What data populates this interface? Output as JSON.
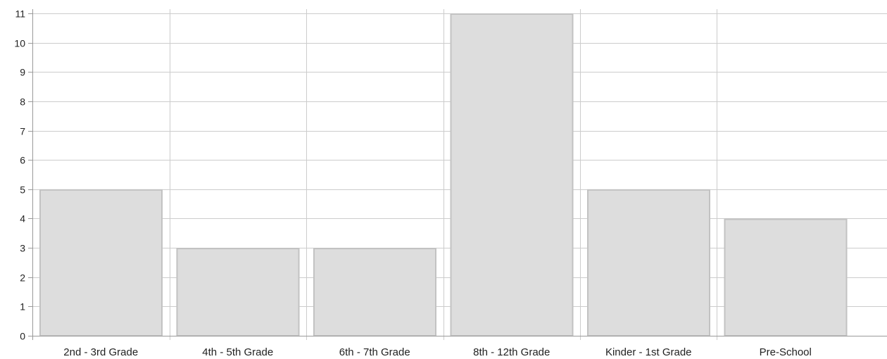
{
  "chart_data": {
    "type": "bar",
    "categories": [
      "2nd - 3rd Grade",
      "4th - 5th Grade",
      "6th - 7th Grade",
      "8th - 12th Grade",
      "Kinder - 1st Grade",
      "Pre-School"
    ],
    "values": [
      5,
      3,
      3,
      11,
      5,
      4
    ],
    "ylim": [
      0,
      11
    ],
    "yticks": [
      0,
      1,
      2,
      3,
      4,
      5,
      6,
      7,
      8,
      9,
      10,
      11
    ],
    "grid": true,
    "legend": "none",
    "colors": {
      "bar_fill": "#dddddd",
      "bar_stroke": "#c2c2c2",
      "grid": "#cccccc",
      "axis": "#999999"
    }
  }
}
